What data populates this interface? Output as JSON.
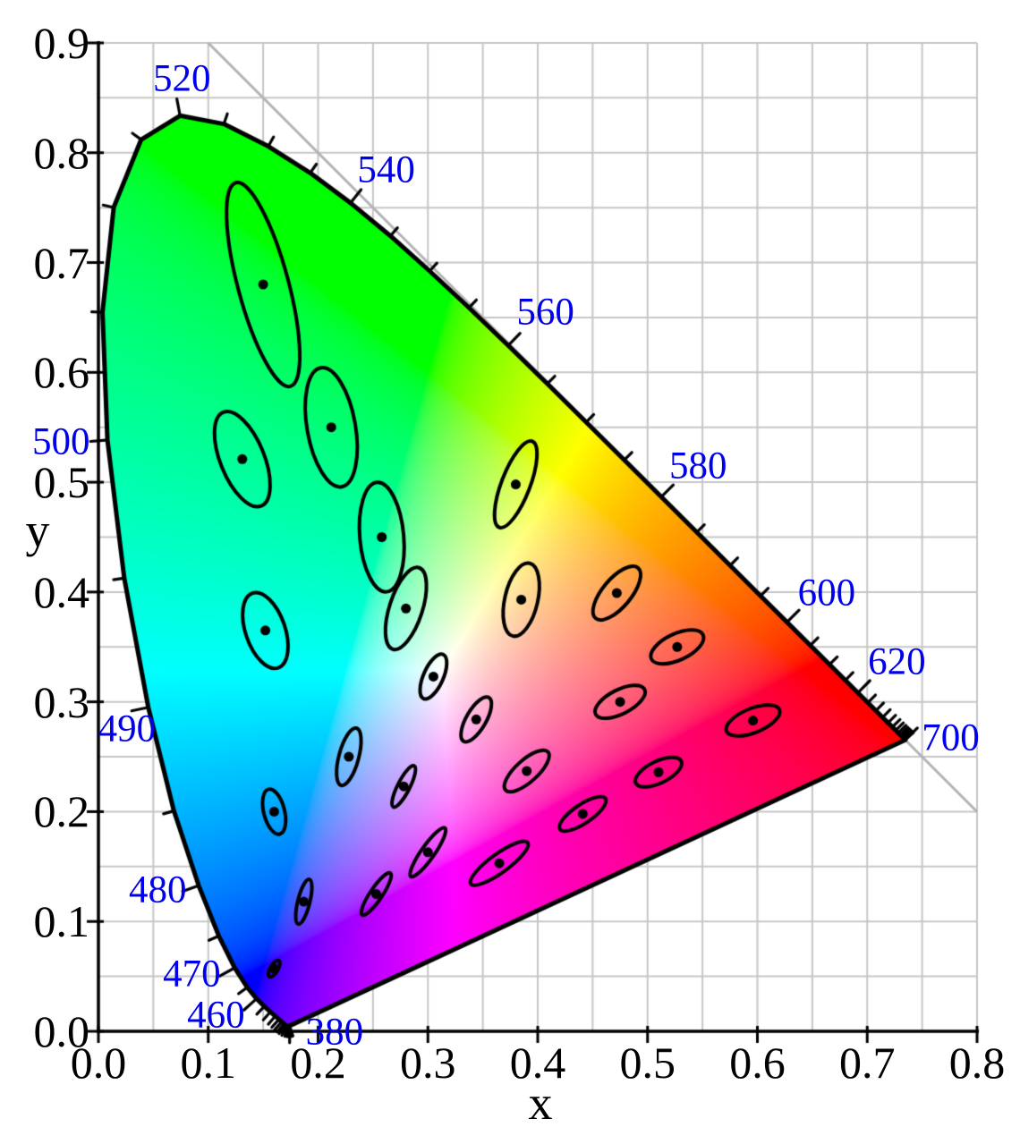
{
  "figure": {
    "x_axis_title": "x",
    "y_axis_title": "y",
    "x_tick_labels": [
      "0.0",
      "0.1",
      "0.2",
      "0.3",
      "0.4",
      "0.5",
      "0.6",
      "0.7",
      "0.8"
    ],
    "y_tick_labels": [
      "0.0",
      "0.1",
      "0.2",
      "0.3",
      "0.4",
      "0.5",
      "0.6",
      "0.7",
      "0.8",
      "0.9"
    ]
  },
  "chart_data": {
    "type": "scatter",
    "subtype": "cie-1931-xy-chromaticity-diagram-with-macadam-ellipses",
    "xlabel": "x",
    "ylabel": "y",
    "xlim": [
      0,
      0.8
    ],
    "ylim": [
      0,
      0.9
    ],
    "grid": true,
    "grid_step": 0.05,
    "labeled_tick_step": 0.1,
    "diagonal_line": {
      "from": [
        0.1,
        0.9
      ],
      "to": [
        0.8,
        0.2
      ],
      "meaning": "x+y=1"
    },
    "ellipse_magnification": 10,
    "ellipse_format": [
      "x",
      "y",
      "a_1e3",
      "b_1e3",
      "theta_deg"
    ],
    "macadam_ellipses": [
      [
        0.16,
        0.057,
        0.85,
        0.35,
        60
      ],
      [
        0.187,
        0.118,
        2.1,
        0.55,
        76
      ],
      [
        0.253,
        0.125,
        2.3,
        0.55,
        56
      ],
      [
        0.15,
        0.68,
        9.6,
        2.3,
        105
      ],
      [
        0.131,
        0.521,
        4.6,
        2.0,
        112
      ],
      [
        0.212,
        0.55,
        5.5,
        2.2,
        100
      ],
      [
        0.258,
        0.45,
        5.0,
        2.0,
        95
      ],
      [
        0.152,
        0.365,
        3.6,
        1.8,
        109
      ],
      [
        0.28,
        0.385,
        3.9,
        1.5,
        72
      ],
      [
        0.38,
        0.498,
        4.2,
        1.3,
        69
      ],
      [
        0.16,
        0.2,
        2.1,
        0.95,
        104
      ],
      [
        0.228,
        0.25,
        2.7,
        0.9,
        75
      ],
      [
        0.305,
        0.323,
        2.2,
        0.9,
        66
      ],
      [
        0.385,
        0.393,
        3.4,
        1.5,
        77
      ],
      [
        0.472,
        0.399,
        3.0,
        1.3,
        50
      ],
      [
        0.527,
        0.35,
        2.6,
        1.2,
        25
      ],
      [
        0.475,
        0.3,
        2.5,
        1.1,
        27
      ],
      [
        0.51,
        0.236,
        2.3,
        1.0,
        26
      ],
      [
        0.596,
        0.283,
        2.6,
        1.1,
        22
      ],
      [
        0.344,
        0.284,
        2.3,
        0.9,
        60
      ],
      [
        0.39,
        0.237,
        2.6,
        1.0,
        42
      ],
      [
        0.441,
        0.198,
        2.5,
        0.85,
        34
      ],
      [
        0.278,
        0.223,
        2.1,
        0.55,
        63
      ],
      [
        0.3,
        0.163,
        2.7,
        0.6,
        55
      ],
      [
        0.365,
        0.153,
        3.2,
        0.85,
        36
      ]
    ],
    "wavelength_labels": [
      {
        "nm": "380",
        "x": 0.215,
        "y": -0.001
      },
      {
        "nm": "460",
        "x": 0.107,
        "y": 0.015
      },
      {
        "nm": "470",
        "x": 0.085,
        "y": 0.052
      },
      {
        "nm": "480",
        "x": 0.054,
        "y": 0.129
      },
      {
        "nm": "490",
        "x": 0.026,
        "y": 0.275
      },
      {
        "nm": "500",
        "x": -0.034,
        "y": 0.537
      },
      {
        "nm": "520",
        "x": 0.076,
        "y": 0.867
      },
      {
        "nm": "540",
        "x": 0.262,
        "y": 0.784
      },
      {
        "nm": "560",
        "x": 0.407,
        "y": 0.655
      },
      {
        "nm": "580",
        "x": 0.546,
        "y": 0.515
      },
      {
        "nm": "600",
        "x": 0.663,
        "y": 0.399
      },
      {
        "nm": "620",
        "x": 0.727,
        "y": 0.336
      },
      {
        "nm": "700",
        "x": 0.776,
        "y": 0.267
      }
    ],
    "wavelength_tick_interval_nm": 5,
    "long_tick_wavelengths": [
      380,
      460,
      470,
      480,
      490,
      500,
      520,
      540,
      560,
      580,
      600,
      620,
      700
    ],
    "spectral_locus_format": [
      "nm",
      "x",
      "y"
    ],
    "spectral_locus": [
      [
        380,
        0.1741,
        0.005
      ],
      [
        385,
        0.174,
        0.005
      ],
      [
        390,
        0.1738,
        0.0049
      ],
      [
        395,
        0.1736,
        0.0049
      ],
      [
        400,
        0.1733,
        0.0048
      ],
      [
        405,
        0.173,
        0.0048
      ],
      [
        410,
        0.1726,
        0.0048
      ],
      [
        415,
        0.1721,
        0.0049
      ],
      [
        420,
        0.1714,
        0.0051
      ],
      [
        425,
        0.1703,
        0.0058
      ],
      [
        430,
        0.1689,
        0.0069
      ],
      [
        435,
        0.1669,
        0.0086
      ],
      [
        440,
        0.1644,
        0.0109
      ],
      [
        445,
        0.1611,
        0.0138
      ],
      [
        450,
        0.1566,
        0.0177
      ],
      [
        455,
        0.151,
        0.0227
      ],
      [
        460,
        0.144,
        0.0297
      ],
      [
        465,
        0.1355,
        0.0399
      ],
      [
        470,
        0.1241,
        0.0578
      ],
      [
        475,
        0.1096,
        0.0868
      ],
      [
        480,
        0.0913,
        0.1327
      ],
      [
        485,
        0.0687,
        0.2007
      ],
      [
        490,
        0.0454,
        0.295
      ],
      [
        495,
        0.0235,
        0.4127
      ],
      [
        500,
        0.0082,
        0.5384
      ],
      [
        505,
        0.0037,
        0.6548
      ],
      [
        510,
        0.0139,
        0.7502
      ],
      [
        515,
        0.0389,
        0.812
      ],
      [
        520,
        0.0743,
        0.8338
      ],
      [
        525,
        0.1142,
        0.8262
      ],
      [
        530,
        0.1547,
        0.8059
      ],
      [
        535,
        0.1929,
        0.7816
      ],
      [
        540,
        0.2296,
        0.7543
      ],
      [
        545,
        0.2659,
        0.7243
      ],
      [
        550,
        0.3016,
        0.6923
      ],
      [
        555,
        0.3374,
        0.6589
      ],
      [
        560,
        0.3731,
        0.6245
      ],
      [
        565,
        0.4087,
        0.5896
      ],
      [
        570,
        0.4441,
        0.5547
      ],
      [
        575,
        0.4788,
        0.5202
      ],
      [
        580,
        0.5125,
        0.4866
      ],
      [
        585,
        0.5448,
        0.4544
      ],
      [
        590,
        0.5752,
        0.4242
      ],
      [
        595,
        0.6029,
        0.3965
      ],
      [
        600,
        0.627,
        0.3725
      ],
      [
        605,
        0.6482,
        0.3514
      ],
      [
        610,
        0.6658,
        0.334
      ],
      [
        615,
        0.6801,
        0.3197
      ],
      [
        620,
        0.6915,
        0.3083
      ],
      [
        625,
        0.7006,
        0.2993
      ],
      [
        630,
        0.7079,
        0.292
      ],
      [
        635,
        0.714,
        0.2859
      ],
      [
        640,
        0.719,
        0.2809
      ],
      [
        645,
        0.723,
        0.277
      ],
      [
        650,
        0.726,
        0.274
      ],
      [
        655,
        0.7283,
        0.2717
      ],
      [
        660,
        0.73,
        0.27
      ],
      [
        665,
        0.7311,
        0.2689
      ],
      [
        670,
        0.732,
        0.268
      ],
      [
        675,
        0.7327,
        0.2673
      ],
      [
        680,
        0.7334,
        0.2666
      ],
      [
        685,
        0.7341,
        0.266
      ],
      [
        690,
        0.7344,
        0.2656
      ],
      [
        695,
        0.7346,
        0.2654
      ],
      [
        700,
        0.7347,
        0.2653
      ]
    ],
    "colors": {
      "wavelength_label": "#0000ee",
      "axis_and_locus": "#000000",
      "grid": "#c6c6c6",
      "diagonal_line": "#b3b3b3",
      "background": "#ffffff"
    }
  }
}
